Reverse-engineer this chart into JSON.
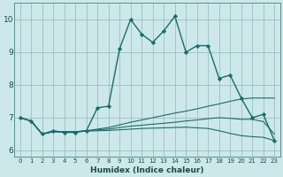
{
  "xlabel": "Humidex (Indice chaleur)",
  "background_color": "#cce8eb",
  "grid_color": "#9bbfc4",
  "line_color": "#1a6b6b",
  "xlim": [
    -0.5,
    23.5
  ],
  "ylim": [
    5.8,
    10.5
  ],
  "xticks": [
    0,
    1,
    2,
    3,
    4,
    5,
    6,
    7,
    8,
    9,
    10,
    11,
    12,
    13,
    14,
    15,
    16,
    17,
    18,
    19,
    20,
    21,
    22,
    23
  ],
  "yticks": [
    6,
    7,
    8,
    9,
    10
  ],
  "series": [
    {
      "x": [
        0,
        1,
        2,
        3,
        4,
        5,
        6,
        7,
        8,
        9,
        10,
        11,
        12,
        13,
        14,
        15,
        16,
        17,
        18,
        19,
        20,
        21,
        22,
        23
      ],
      "y": [
        7.0,
        6.9,
        6.5,
        6.6,
        6.55,
        6.55,
        6.6,
        7.3,
        7.35,
        9.1,
        10.0,
        9.55,
        9.3,
        9.65,
        10.1,
        9.0,
        9.2,
        9.2,
        8.2,
        8.3,
        7.6,
        7.0,
        7.1,
        6.3
      ],
      "marker": true,
      "lw": 1.0
    },
    {
      "x": [
        0,
        1,
        2,
        3,
        4,
        5,
        6,
        7,
        8,
        9,
        10,
        11,
        12,
        13,
        14,
        15,
        16,
        17,
        18,
        19,
        20,
        21,
        22,
        23
      ],
      "y": [
        7.0,
        6.9,
        6.5,
        6.57,
        6.57,
        6.57,
        6.6,
        6.65,
        6.7,
        6.78,
        6.86,
        6.93,
        7.0,
        7.07,
        7.14,
        7.2,
        7.27,
        7.35,
        7.42,
        7.5,
        7.57,
        7.6,
        7.6,
        7.6
      ],
      "marker": false,
      "lw": 0.8
    },
    {
      "x": [
        0,
        1,
        2,
        3,
        4,
        5,
        6,
        7,
        8,
        9,
        10,
        11,
        12,
        13,
        14,
        15,
        16,
        17,
        18,
        19,
        20,
        21,
        22,
        23
      ],
      "y": [
        7.0,
        6.9,
        6.5,
        6.57,
        6.57,
        6.57,
        6.6,
        6.63,
        6.65,
        6.7,
        6.74,
        6.77,
        6.8,
        6.83,
        6.86,
        6.9,
        6.93,
        6.97,
        7.0,
        6.98,
        6.95,
        6.95,
        6.88,
        6.5
      ],
      "marker": false,
      "lw": 0.8
    },
    {
      "x": [
        0,
        1,
        2,
        3,
        4,
        5,
        6,
        7,
        8,
        9,
        10,
        11,
        12,
        13,
        14,
        15,
        16,
        17,
        18,
        19,
        20,
        21,
        22,
        23
      ],
      "y": [
        7.0,
        6.9,
        6.5,
        6.57,
        6.57,
        6.57,
        6.59,
        6.6,
        6.61,
        6.63,
        6.65,
        6.67,
        6.68,
        6.69,
        6.7,
        6.71,
        6.69,
        6.67,
        6.6,
        6.52,
        6.45,
        6.42,
        6.4,
        6.3
      ],
      "marker": false,
      "lw": 0.8
    }
  ]
}
